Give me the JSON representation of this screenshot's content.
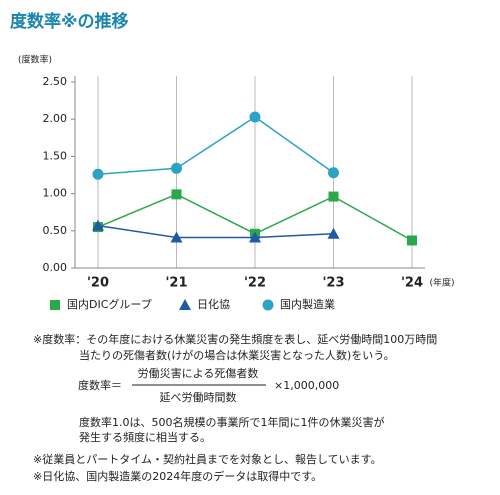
{
  "chart_data": {
    "type": "line",
    "title": "度数率※の推移",
    "ylabel": "(度数率)",
    "xlabel": "(年度)",
    "categories": [
      "'20",
      "'21",
      "'22",
      "'23",
      "'24"
    ],
    "series": [
      {
        "name": "国内DICグループ",
        "color": "#2aa84a",
        "marker": "square",
        "values": [
          0.55,
          0.99,
          0.46,
          0.96,
          0.37
        ]
      },
      {
        "name": "日化協",
        "color": "#1f5aa6",
        "marker": "triangle",
        "values": [
          0.57,
          0.41,
          0.41,
          0.46,
          null
        ]
      },
      {
        "name": "国内製造業",
        "color": "#2ba3c4",
        "marker": "circle",
        "values": [
          1.26,
          1.34,
          2.03,
          1.28,
          null
        ]
      }
    ],
    "ylim": [
      0,
      2.5
    ],
    "yticks": [
      {
        "value": 0,
        "label": "0.00"
      },
      {
        "value": 0.5,
        "label": "0.50"
      },
      {
        "value": 1,
        "label": "1.00"
      },
      {
        "value": 1.5,
        "label": "1.50"
      },
      {
        "value": 2,
        "label": "2.00"
      },
      {
        "value": 2.5,
        "label": "2.50"
      }
    ],
    "grid": true
  },
  "notes": {
    "definition": [
      "※度数率：その年度における休業災害の発生頻度を表し、延べ労働時間100万時間",
      "当たりの死傷者数(けがの場合は休業災害となった人数)をいう。"
    ],
    "formula": {
      "lhs": "度数率＝",
      "numerator": "労働災害による死傷者数",
      "denominator": "延べ労働時間数",
      "multiplier": "×1,000,000"
    },
    "example": [
      "度数率1.0は、500名規模の事業所で1年間に1件の休業災害が",
      "発生する頻度に相当する。"
    ],
    "footnotes": [
      "※従業員とパートタイム・契約社員までを対象とし、報告しています。",
      "※日化協、国内製造業の2024年度のデータは取得中です。"
    ]
  }
}
